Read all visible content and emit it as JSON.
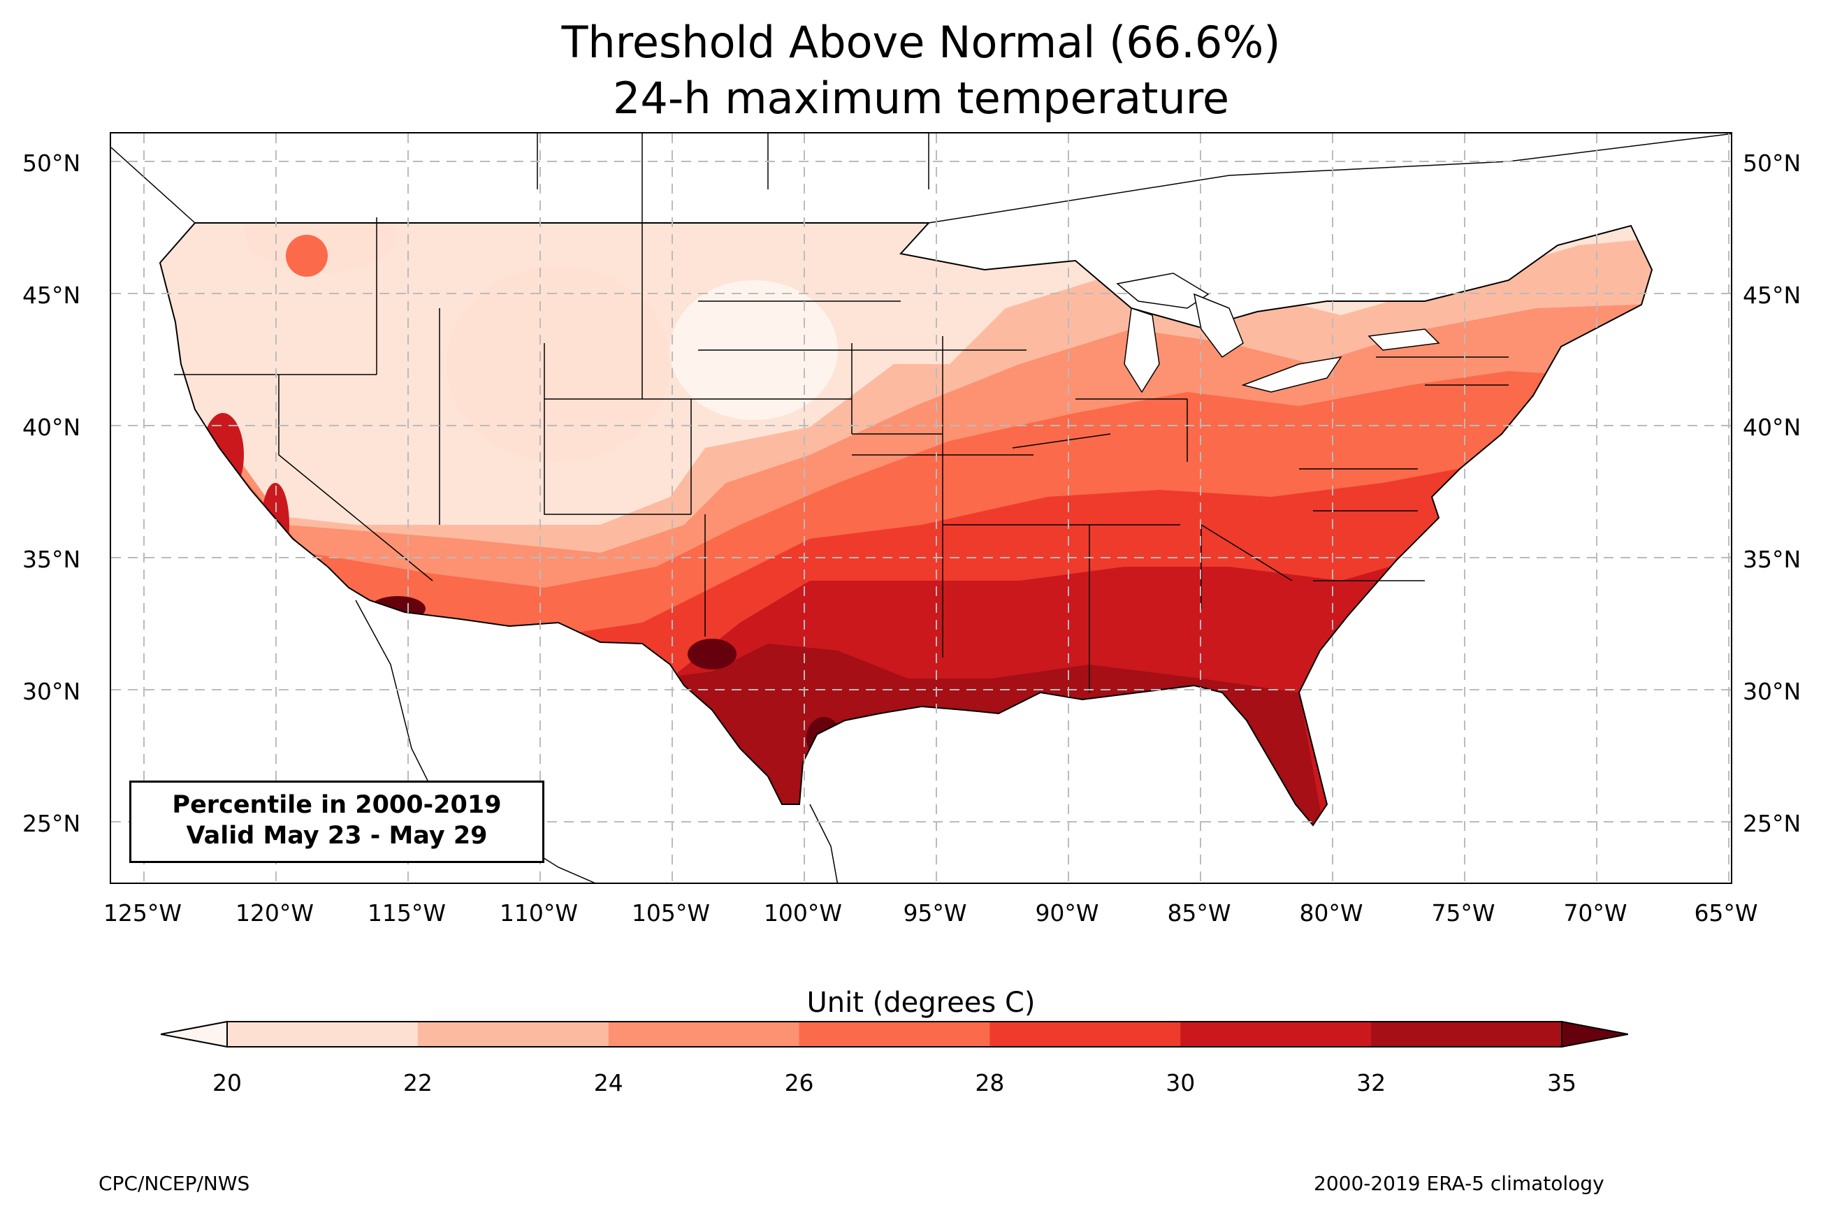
{
  "title": {
    "line1": "Threshold Above Normal (66.6%)",
    "line2": "24-h maximum temperature"
  },
  "map": {
    "region": "Contiguous United States",
    "lon_range": [
      -126.2,
      -64.8
    ],
    "lat_range": [
      22.8,
      51.2
    ],
    "lat_labels": [
      "50°N",
      "45°N",
      "40°N",
      "35°N",
      "30°N",
      "25°N"
    ],
    "lon_labels": [
      "125°W",
      "120°W",
      "115°W",
      "110°W",
      "105°W",
      "100°W",
      "95°W",
      "90°W",
      "85°W",
      "80°W",
      "75°W",
      "70°W",
      "65°W"
    ],
    "gridlines": "dashed"
  },
  "info_box": {
    "line1": "Percentile in 2000-2019",
    "line2": "Valid May 23 - May 29"
  },
  "colorbar": {
    "title": "Unit (degrees C)",
    "ticks": [
      "20",
      "22",
      "24",
      "26",
      "28",
      "30",
      "32",
      "35"
    ],
    "colors": [
      "#fee0d2",
      "#fcbba1",
      "#fc9272",
      "#fb6a4a",
      "#ef3b2c",
      "#cb181d",
      "#a50f15"
    ],
    "under_color": "#fff5f0",
    "over_color": "#67000d"
  },
  "footer": {
    "left": "CPC/NCEP/NWS",
    "right": "2000-2019 ERA-5 climatology"
  }
}
